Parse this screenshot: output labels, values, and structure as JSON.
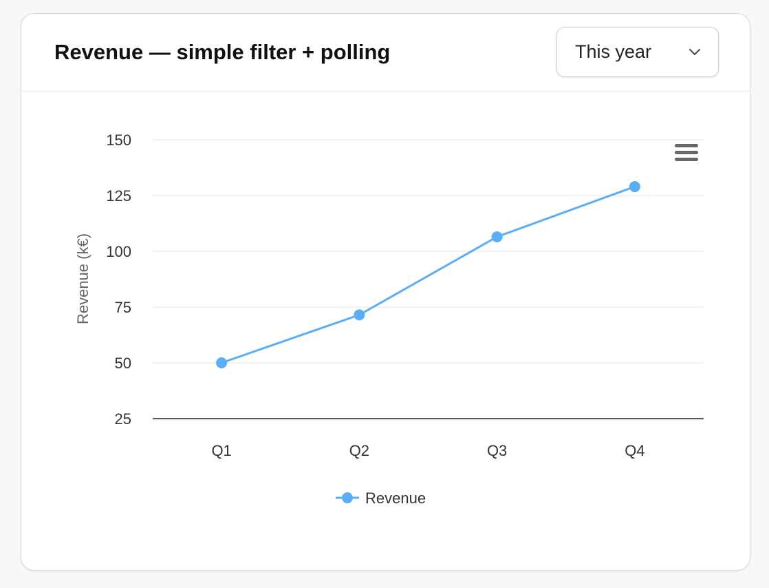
{
  "card": {
    "title": "Revenue — simple filter + polling"
  },
  "filter": {
    "selected": "This year",
    "icon": "chevron-down-icon"
  },
  "chart_menu": {
    "icon": "hamburger-menu-icon"
  },
  "chart_data": {
    "type": "line",
    "categories": [
      "Q1",
      "Q2",
      "Q3",
      "Q4"
    ],
    "series": [
      {
        "name": "Revenue",
        "values": [
          50,
          71.5,
          106.5,
          129
        ],
        "color": "#5aaef5"
      }
    ],
    "ylabel": "Revenue (k€)",
    "xlabel": "",
    "ylim": [
      25,
      150
    ],
    "yticks": [
      25,
      50,
      75,
      100,
      125,
      150
    ],
    "grid": true,
    "legend": "bottom-center"
  }
}
